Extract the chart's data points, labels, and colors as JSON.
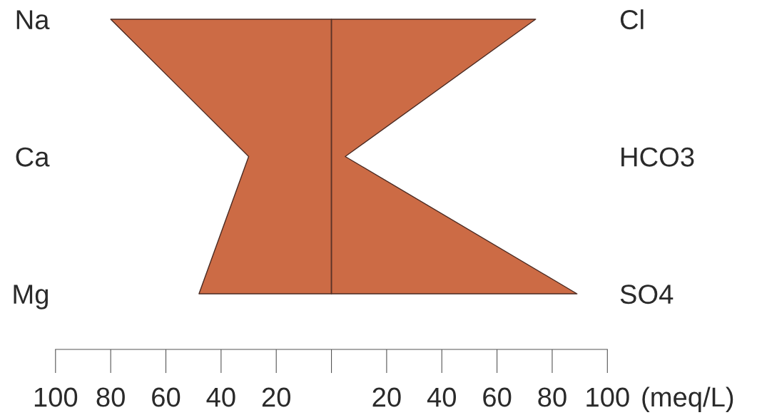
{
  "chart_data": {
    "type": "area",
    "orientation": "horizontal",
    "categories": [
      "Na",
      "Ca",
      "Mg"
    ],
    "y2_categories": [
      "Cl",
      "HCO3",
      "SO4"
    ],
    "series": [
      {
        "color": "#cc6b45",
        "values": [
          -80,
          -30,
          -48
        ]
      },
      {
        "color": "#cc6b45",
        "values": [
          74,
          5,
          89
        ]
      }
    ],
    "xlim": [
      -100,
      100
    ],
    "xticks": [
      {
        "value": -100,
        "label": "100"
      },
      {
        "value": -80,
        "label": "80"
      },
      {
        "value": -60,
        "label": "60"
      },
      {
        "value": -40,
        "label": "40"
      },
      {
        "value": -20,
        "label": "20"
      },
      {
        "value": 0,
        "label": null
      },
      20,
      40,
      60,
      80,
      100
    ],
    "xlabel": "(meq/L)",
    "ref_lines": [
      {
        "axis": "x",
        "value": 0,
        "color": "#5a3328"
      }
    ]
  }
}
